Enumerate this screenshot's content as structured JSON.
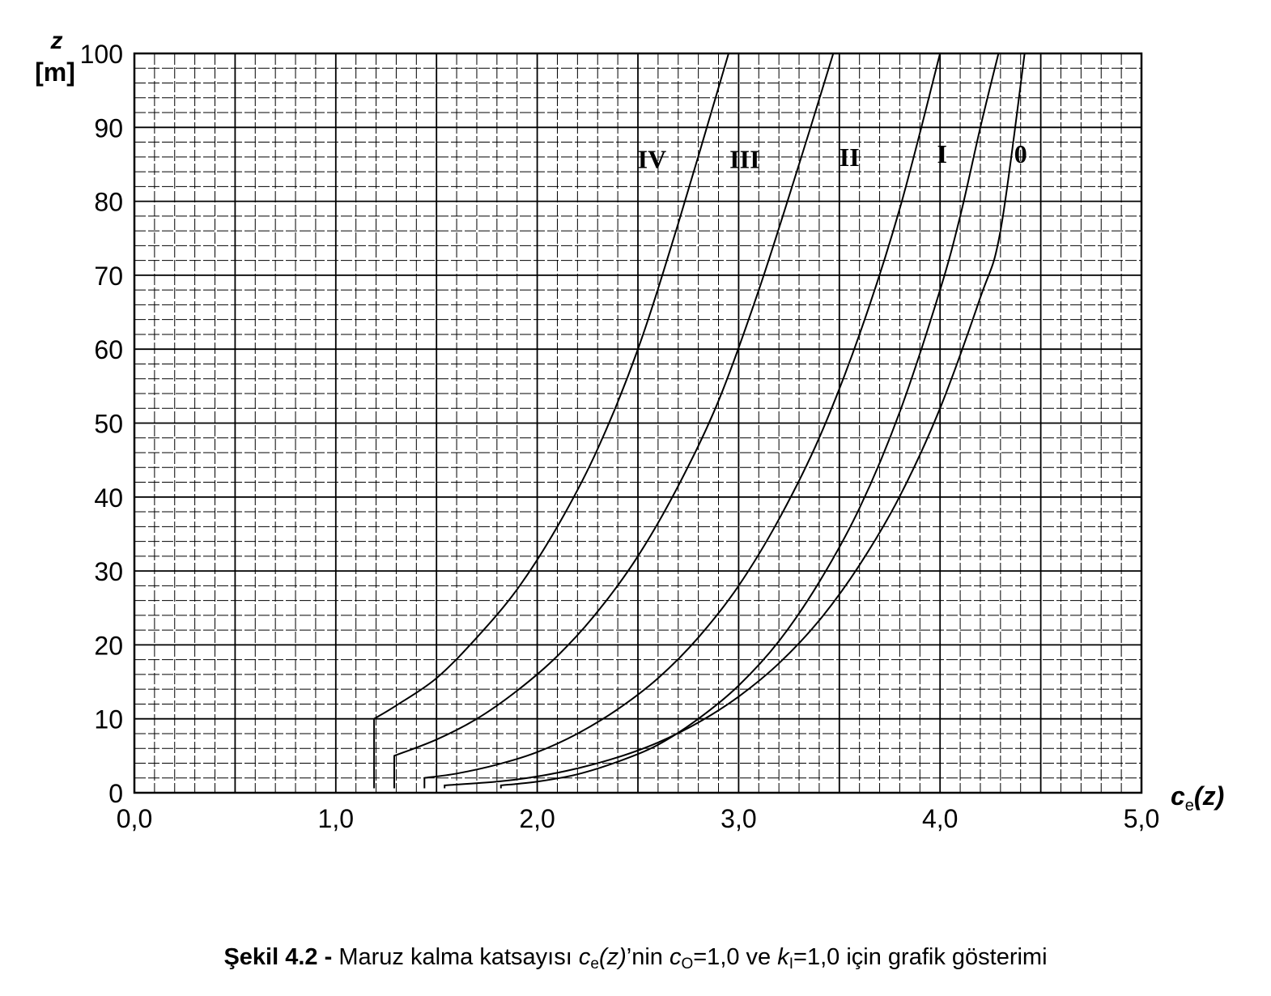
{
  "chart_data": {
    "type": "line",
    "xlabel": {
      "base": "c",
      "sub": "e",
      "arg": "(z)"
    },
    "ylabel": {
      "var": "z",
      "unit": "[m]"
    },
    "xlim": [
      0,
      5
    ],
    "ylim": [
      0,
      100
    ],
    "xticks": [
      "0,0",
      "1,0",
      "2,0",
      "3,0",
      "4,0",
      "5,0"
    ],
    "yticks": [
      "0",
      "10",
      "20",
      "30",
      "40",
      "50",
      "60",
      "70",
      "80",
      "90",
      "100"
    ],
    "grid": true,
    "series": [
      {
        "name": "0",
        "zmin": 1,
        "x": [
          1.54,
          1.8,
          2.0,
          2.2,
          2.4,
          2.6,
          2.8,
          3.0,
          3.2,
          3.4,
          3.6,
          3.8,
          4.0,
          4.2,
          4.3,
          4.42
        ],
        "y": [
          1,
          1.5,
          2.2,
          3.3,
          4.8,
          6.8,
          9.5,
          13.0,
          17.5,
          23.3,
          30.8,
          40.1,
          52.0,
          67.0,
          76.0,
          100
        ]
      },
      {
        "name": "I",
        "zmin": 1,
        "x": [
          1.82,
          2.0,
          2.2,
          2.4,
          2.6,
          2.8,
          3.0,
          3.2,
          3.4,
          3.6,
          3.8,
          4.0,
          4.1,
          4.2,
          4.29
        ],
        "y": [
          1,
          1.5,
          2.5,
          4.2,
          6.5,
          10.0,
          14.5,
          20.5,
          28.5,
          38.5,
          51.5,
          68.0,
          78.0,
          90.0,
          100
        ]
      },
      {
        "name": "II",
        "zmin": 2,
        "x": [
          1.44,
          1.6,
          1.8,
          2.0,
          2.2,
          2.4,
          2.6,
          2.8,
          3.0,
          3.2,
          3.4,
          3.6,
          3.8,
          4.0
        ],
        "y": [
          2,
          2.6,
          3.8,
          5.5,
          8.0,
          11.3,
          15.5,
          21.0,
          28.0,
          37.0,
          48.0,
          62.0,
          79.0,
          100
        ]
      },
      {
        "name": "III",
        "zmin": 5,
        "x": [
          1.29,
          1.5,
          1.7,
          1.9,
          2.1,
          2.3,
          2.5,
          2.7,
          2.9,
          3.1,
          3.3,
          3.47
        ],
        "y": [
          5,
          7.2,
          10.0,
          13.8,
          18.5,
          24.5,
          32.0,
          41.5,
          53.0,
          68.0,
          85.0,
          100
        ]
      },
      {
        "name": "IV",
        "zmin": 10,
        "x": [
          1.19,
          1.3,
          1.5,
          1.7,
          1.9,
          2.1,
          2.3,
          2.5,
          2.7,
          2.95
        ],
        "y": [
          10,
          11.8,
          15.5,
          21.0,
          27.5,
          36.0,
          46.5,
          60.0,
          77.0,
          100
        ]
      }
    ],
    "series_labels": [
      {
        "name": "IV",
        "x": 2.57,
        "y": 84.5
      },
      {
        "name": "III",
        "x": 3.03,
        "y": 84.5
      },
      {
        "name": "II",
        "x": 3.55,
        "y": 84.8
      },
      {
        "name": "I",
        "x": 4.01,
        "y": 85.2
      },
      {
        "name": "0",
        "x": 4.4,
        "y": 85.2
      }
    ]
  },
  "caption": {
    "fig": "Şekil 4.2",
    "dash": " - ",
    "p1": "Maruz kalma katsayısı ",
    "c": "c",
    "e": "e",
    "z": "(z)",
    "p2": "’nin ",
    "c2": "c",
    "O": "O",
    "p3": "=1,0 ve ",
    "k": "k",
    "I": "I",
    "p4": "=1,0 için grafik gösterimi"
  }
}
